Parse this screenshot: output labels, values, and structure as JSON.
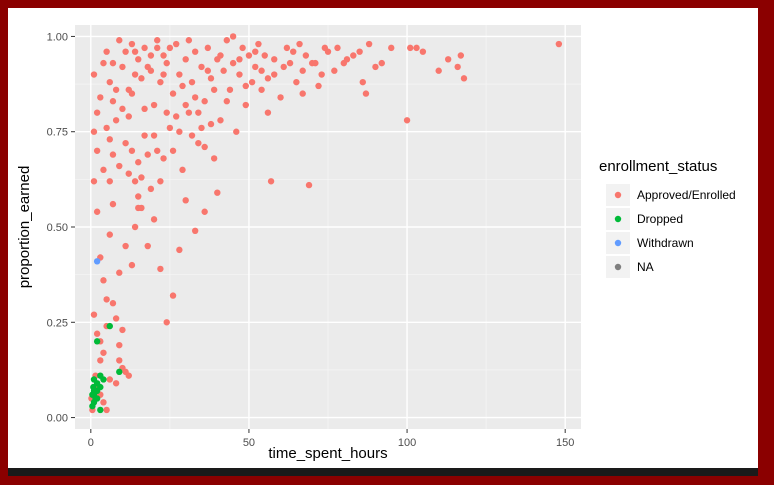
{
  "chart_data": {
    "type": "scatter",
    "title": "",
    "xlabel": "time_spent_hours",
    "ylabel": "proportion_earned",
    "xlim": [
      -5,
      155
    ],
    "ylim": [
      -0.03,
      1.03
    ],
    "x_ticks": [
      0,
      50,
      100,
      150
    ],
    "x_tick_labels": [
      "0",
      "50",
      "100",
      "150"
    ],
    "y_ticks": [
      0,
      0.25,
      0.5,
      0.75,
      1.0
    ],
    "y_tick_labels": [
      "0.00",
      "0.25",
      "0.50",
      "0.75",
      "1.00"
    ],
    "grid": true,
    "panel_background": "#ebebeb",
    "legend": {
      "title": "enrollment_status",
      "position": "right",
      "entries": [
        {
          "label": "Approved/Enrolled",
          "color": "#f8766d"
        },
        {
          "label": "Dropped",
          "color": "#00ba38"
        },
        {
          "label": "Withdrawn",
          "color": "#619cff"
        },
        {
          "label": "NA",
          "color": "#7f7f7f"
        }
      ]
    },
    "series": [
      {
        "name": "Approved/Enrolled",
        "color": "#f8766d",
        "points": [
          [
            148,
            0.98
          ],
          [
            118,
            0.89
          ],
          [
            117,
            0.95
          ],
          [
            116,
            0.92
          ],
          [
            113,
            0.94
          ],
          [
            110,
            0.91
          ],
          [
            105,
            0.96
          ],
          [
            103,
            0.97
          ],
          [
            101,
            0.97
          ],
          [
            100,
            0.78
          ],
          [
            90,
            0.92
          ],
          [
            88,
            0.98
          ],
          [
            87,
            0.85
          ],
          [
            85,
            0.96
          ],
          [
            83,
            0.95
          ],
          [
            80,
            0.93
          ],
          [
            78,
            0.97
          ],
          [
            75,
            0.96
          ],
          [
            73,
            0.9
          ],
          [
            72,
            0.87
          ],
          [
            70,
            0.93
          ],
          [
            69,
            0.61
          ],
          [
            68,
            0.95
          ],
          [
            67,
            0.91
          ],
          [
            66,
            0.98
          ],
          [
            65,
            0.88
          ],
          [
            63,
            0.93
          ],
          [
            62,
            0.97
          ],
          [
            60,
            0.84
          ],
          [
            58,
            0.9
          ],
          [
            57,
            0.62
          ],
          [
            56,
            0.8
          ],
          [
            55,
            0.95
          ],
          [
            54,
            0.86
          ],
          [
            53,
            0.98
          ],
          [
            52,
            0.92
          ],
          [
            51,
            0.88
          ],
          [
            50,
            0.95
          ],
          [
            49,
            0.82
          ],
          [
            48,
            0.97
          ],
          [
            47,
            0.9
          ],
          [
            46,
            0.75
          ],
          [
            45,
            0.93
          ],
          [
            44,
            0.86
          ],
          [
            43,
            0.99
          ],
          [
            42,
            0.91
          ],
          [
            41,
            0.78
          ],
          [
            40,
            0.94
          ],
          [
            39,
            0.68
          ],
          [
            38,
            0.89
          ],
          [
            37,
            0.97
          ],
          [
            36,
            0.83
          ],
          [
            35,
            0.92
          ],
          [
            34,
            0.72
          ],
          [
            33,
            0.96
          ],
          [
            32,
            0.88
          ],
          [
            31,
            0.8
          ],
          [
            30,
            0.94
          ],
          [
            29,
            0.65
          ],
          [
            28,
            0.9
          ],
          [
            27,
            0.98
          ],
          [
            26,
            0.85
          ],
          [
            25,
            0.76
          ],
          [
            24,
            0.93
          ],
          [
            23,
            0.68
          ],
          [
            22,
            0.88
          ],
          [
            21,
            0.97
          ],
          [
            20,
            0.82
          ],
          [
            19,
            0.6
          ],
          [
            18,
            0.92
          ],
          [
            17,
            0.74
          ],
          [
            16,
            0.89
          ],
          [
            15,
            0.55
          ],
          [
            14,
            0.96
          ],
          [
            13,
            0.7
          ],
          [
            12,
            0.86
          ],
          [
            11,
            0.45
          ],
          [
            10,
            0.92
          ],
          [
            9,
            0.38
          ],
          [
            8,
            0.78
          ],
          [
            7,
            0.3
          ],
          [
            6,
            0.88
          ],
          [
            5,
            0.24
          ],
          [
            4,
            0.65
          ],
          [
            3,
            0.15
          ],
          [
            2,
            0.8
          ],
          [
            1.5,
            0.11
          ],
          [
            1,
            0.9
          ],
          [
            0.5,
            0.02
          ],
          [
            0.2,
            0.05
          ],
          [
            1,
            0.62
          ],
          [
            2,
            0.54
          ],
          [
            3,
            0.42
          ],
          [
            4,
            0.36
          ],
          [
            5,
            0.31
          ],
          [
            6,
            0.48
          ],
          [
            7,
            0.56
          ],
          [
            8,
            0.26
          ],
          [
            9,
            0.19
          ],
          [
            10,
            0.13
          ],
          [
            11,
            0.12
          ],
          [
            12,
            0.11
          ],
          [
            13,
            0.4
          ],
          [
            14,
            0.5
          ],
          [
            15,
            0.58
          ],
          [
            16,
            0.63
          ],
          [
            18,
            0.45
          ],
          [
            20,
            0.52
          ],
          [
            22,
            0.39
          ],
          [
            24,
            0.25
          ],
          [
            26,
            0.32
          ],
          [
            28,
            0.44
          ],
          [
            30,
            0.57
          ],
          [
            33,
            0.49
          ],
          [
            36,
            0.54
          ],
          [
            40,
            0.59
          ],
          [
            2,
            0.08
          ],
          [
            3,
            0.06
          ],
          [
            4,
            0.04
          ],
          [
            5,
            0.02
          ],
          [
            1,
            0.27
          ],
          [
            2,
            0.22
          ],
          [
            3,
            0.2
          ],
          [
            4,
            0.17
          ],
          [
            6,
            0.1
          ],
          [
            8,
            0.09
          ],
          [
            9,
            0.15
          ],
          [
            10,
            0.23
          ],
          [
            6,
            0.73
          ],
          [
            7,
            0.83
          ],
          [
            9,
            0.66
          ],
          [
            11,
            0.72
          ],
          [
            12,
            0.79
          ],
          [
            13,
            0.85
          ],
          [
            14,
            0.9
          ],
          [
            15,
            0.67
          ],
          [
            17,
            0.81
          ],
          [
            19,
            0.95
          ],
          [
            21,
            0.7
          ],
          [
            23,
            0.9
          ],
          [
            25,
            0.97
          ],
          [
            27,
            0.79
          ],
          [
            29,
            0.87
          ],
          [
            31,
            0.99
          ],
          [
            33,
            0.84
          ],
          [
            35,
            0.76
          ],
          [
            37,
            0.91
          ],
          [
            39,
            0.86
          ],
          [
            41,
            0.95
          ],
          [
            43,
            0.83
          ],
          [
            45,
            1.0
          ],
          [
            47,
            0.94
          ],
          [
            49,
            0.87
          ],
          [
            52,
            0.96
          ],
          [
            54,
            0.91
          ],
          [
            56,
            0.89
          ],
          [
            58,
            0.94
          ],
          [
            61,
            0.92
          ],
          [
            64,
            0.96
          ],
          [
            67,
            0.85
          ],
          [
            71,
            0.93
          ],
          [
            74,
            0.97
          ],
          [
            77,
            0.91
          ],
          [
            81,
            0.94
          ],
          [
            86,
            0.88
          ],
          [
            92,
            0.93
          ],
          [
            95,
            0.97
          ],
          [
            14,
            0.62
          ],
          [
            16,
            0.55
          ],
          [
            18,
            0.69
          ],
          [
            20,
            0.74
          ],
          [
            22,
            0.62
          ],
          [
            24,
            0.8
          ],
          [
            26,
            0.7
          ],
          [
            28,
            0.75
          ],
          [
            30,
            0.82
          ],
          [
            32,
            0.74
          ],
          [
            34,
            0.8
          ],
          [
            36,
            0.71
          ],
          [
            38,
            0.77
          ],
          [
            5,
            0.96
          ],
          [
            7,
            0.93
          ],
          [
            9,
            0.99
          ],
          [
            11,
            0.96
          ],
          [
            13,
            0.98
          ],
          [
            15,
            0.94
          ],
          [
            17,
            0.97
          ],
          [
            19,
            0.91
          ],
          [
            21,
            0.99
          ],
          [
            23,
            0.95
          ],
          [
            3,
            0.84
          ],
          [
            4,
            0.93
          ],
          [
            5,
            0.76
          ],
          [
            6,
            0.62
          ],
          [
            7,
            0.69
          ],
          [
            8,
            0.86
          ],
          [
            10,
            0.81
          ],
          [
            12,
            0.64
          ],
          [
            1,
            0.75
          ],
          [
            2,
            0.7
          ]
        ]
      },
      {
        "name": "Dropped",
        "color": "#00ba38",
        "points": [
          [
            6,
            0.24
          ],
          [
            2,
            0.2
          ],
          [
            9,
            0.12
          ],
          [
            1,
            0.1
          ],
          [
            2,
            0.09
          ],
          [
            3,
            0.08
          ],
          [
            1,
            0.07
          ],
          [
            0.5,
            0.06
          ],
          [
            2,
            0.05
          ],
          [
            1,
            0.04
          ],
          [
            0.5,
            0.03
          ],
          [
            3,
            0.02
          ],
          [
            1,
            0.06
          ],
          [
            2,
            0.07
          ],
          [
            4,
            0.1
          ],
          [
            3,
            0.11
          ],
          [
            1.5,
            0.05
          ],
          [
            0.8,
            0.08
          ]
        ]
      },
      {
        "name": "Withdrawn",
        "color": "#619cff",
        "points": [
          [
            2,
            0.41
          ]
        ]
      }
    ]
  }
}
